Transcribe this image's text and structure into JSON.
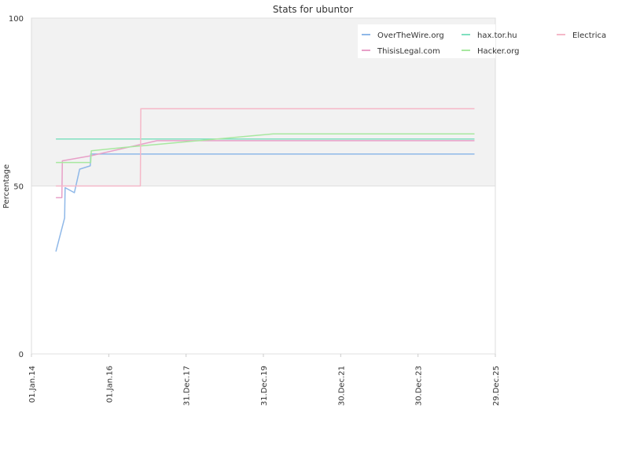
{
  "chart_data": {
    "type": "line",
    "title": "Stats for ubuntor",
    "xlabel": "",
    "ylabel": "Percentage",
    "xlim": [
      "2014-01-01",
      "2025-12-29"
    ],
    "ylim": [
      0,
      100
    ],
    "x_ticks": [
      {
        "date": "2014-01-01",
        "label": "01.Jan.14"
      },
      {
        "date": "2016-01-01",
        "label": "01.Jan.16"
      },
      {
        "date": "2017-12-31",
        "label": "31.Dec.17"
      },
      {
        "date": "2019-12-31",
        "label": "31.Dec.19"
      },
      {
        "date": "2021-12-30",
        "label": "30.Dec.21"
      },
      {
        "date": "2023-12-30",
        "label": "30.Dec.23"
      },
      {
        "date": "2025-12-29",
        "label": "29.Dec.25"
      }
    ],
    "y_ticks": [
      0,
      50,
      100
    ],
    "shaded_band": {
      "from": 50,
      "to": 100,
      "color": "#f2f2f2"
    },
    "legend_position": "top-right",
    "series": [
      {
        "name": "OverTheWire.org",
        "color": "#8fb8e8",
        "points": [
          [
            "2014-08-20",
            30.5
          ],
          [
            "2014-11-10",
            40.5
          ],
          [
            "2014-11-15",
            49.5
          ],
          [
            "2015-02-10",
            48
          ],
          [
            "2015-04-01",
            55
          ],
          [
            "2015-07-10",
            56
          ],
          [
            "2015-07-15",
            59.5
          ],
          [
            "2025-06-15",
            59.5
          ]
        ]
      },
      {
        "name": "ThisisLegal.com",
        "color": "#e8a0c8",
        "points": [
          [
            "2014-08-20",
            46.5
          ],
          [
            "2014-10-15",
            46.5
          ],
          [
            "2014-10-20",
            57.5
          ],
          [
            "2015-07-15",
            59
          ],
          [
            "2017-04-01",
            63.5
          ],
          [
            "2025-06-15",
            63.5
          ]
        ]
      },
      {
        "name": "hax.tor.hu",
        "color": "#80e0c0",
        "points": [
          [
            "2014-08-20",
            64
          ],
          [
            "2025-06-15",
            64
          ]
        ]
      },
      {
        "name": "Hacker.org",
        "color": "#a8e8a0",
        "points": [
          [
            "2014-08-20",
            57
          ],
          [
            "2015-07-15",
            57
          ],
          [
            "2015-07-20",
            60.5
          ],
          [
            "2016-06-01",
            61.5
          ],
          [
            "2020-04-01",
            65.5
          ],
          [
            "2025-06-15",
            65.5
          ]
        ]
      },
      {
        "name": "Electrica",
        "color": "#f5b8c8",
        "points": [
          [
            "2014-08-20",
            50
          ],
          [
            "2016-10-25",
            50
          ],
          [
            "2016-10-30",
            73
          ],
          [
            "2025-06-15",
            73
          ]
        ]
      }
    ]
  }
}
